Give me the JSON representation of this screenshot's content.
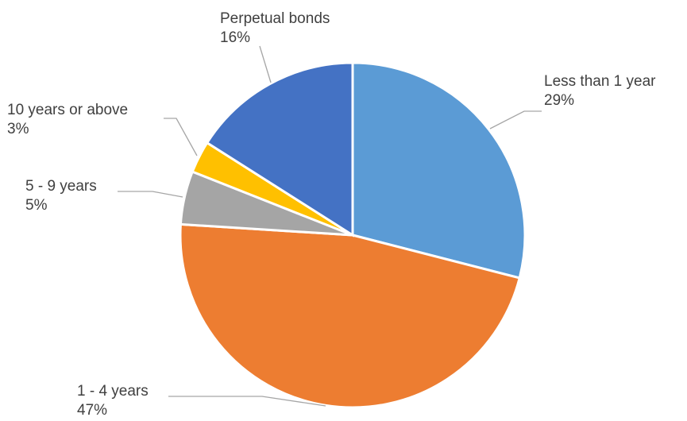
{
  "chart_data": {
    "type": "pie",
    "start_angle_deg": 0,
    "direction": "clockwise",
    "slices": [
      {
        "label": "Less than 1 year",
        "value": 29,
        "display": "29%",
        "color": "#5b9bd5"
      },
      {
        "label": "1 - 4 years",
        "value": 47,
        "display": "47%",
        "color": "#ed7d31"
      },
      {
        "label": "5 - 9 years",
        "value": 5,
        "display": "5%",
        "color": "#a5a5a5"
      },
      {
        "label": "10 years or above",
        "value": 3,
        "display": "3%",
        "color": "#ffc000"
      },
      {
        "label": "Perpetual bonds",
        "value": 16,
        "display": "16%",
        "color": "#4472c4"
      }
    ]
  }
}
